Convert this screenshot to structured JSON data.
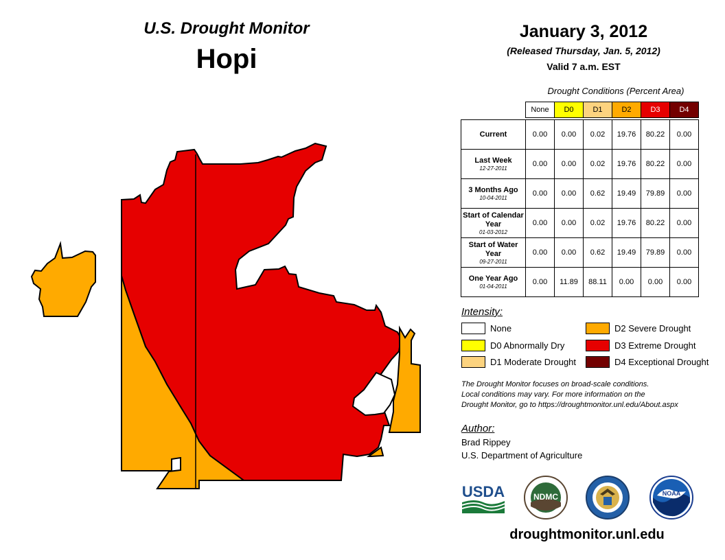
{
  "header": {
    "brand": "U.S. Drought Monitor",
    "region": "Hopi",
    "date": "January 3, 2012",
    "released": "(Released Thursday, Jan. 5, 2012)",
    "valid": "Valid 7 a.m. EST"
  },
  "table": {
    "caption": "Drought Conditions (Percent Area)",
    "columns": [
      "None",
      "D0",
      "D1",
      "D2",
      "D3",
      "D4"
    ],
    "rows": [
      {
        "label": "Current",
        "sub": "",
        "values": [
          "0.00",
          "0.00",
          "0.02",
          "19.76",
          "80.22",
          "0.00"
        ]
      },
      {
        "label": "Last Week",
        "sub": "12-27-2011",
        "values": [
          "0.00",
          "0.00",
          "0.02",
          "19.76",
          "80.22",
          "0.00"
        ]
      },
      {
        "label": "3 Months Ago",
        "sub": "10-04-2011",
        "values": [
          "0.00",
          "0.00",
          "0.62",
          "19.49",
          "79.89",
          "0.00"
        ]
      },
      {
        "label": "Start of Calendar Year",
        "sub": "01-03-2012",
        "values": [
          "0.00",
          "0.00",
          "0.02",
          "19.76",
          "80.22",
          "0.00"
        ]
      },
      {
        "label": "Start of Water Year",
        "sub": "09-27-2011",
        "values": [
          "0.00",
          "0.00",
          "0.62",
          "19.49",
          "79.89",
          "0.00"
        ]
      },
      {
        "label": "One Year Ago",
        "sub": "01-04-2011",
        "values": [
          "0.00",
          "11.89",
          "88.11",
          "0.00",
          "0.00",
          "0.00"
        ]
      }
    ]
  },
  "legend": {
    "title": "Intensity:",
    "items": [
      {
        "label": "None",
        "color": "#ffffff"
      },
      {
        "label": "D0 Abnormally Dry",
        "color": "#ffff00"
      },
      {
        "label": "D1 Moderate Drought",
        "color": "#fcd37f"
      },
      {
        "label": "D2 Severe Drought",
        "color": "#ffaa00"
      },
      {
        "label": "D3 Extreme Drought",
        "color": "#e60000"
      },
      {
        "label": "D4 Exceptional Drought",
        "color": "#730000"
      }
    ]
  },
  "disclaimer": {
    "line1": "The Drought Monitor focuses on broad-scale conditions.",
    "line2": "Local conditions may vary. For more information on the",
    "line3": "Drought Monitor, go to https://droughtmonitor.unl.edu/About.aspx"
  },
  "author": {
    "title": "Author:",
    "name": "Brad Rippey",
    "org": "U.S. Department of Agriculture"
  },
  "logos": {
    "usda": "USDA",
    "ndmc": "NDMC",
    "noaa": "NOAA"
  },
  "website": "droughtmonitor.unl.edu",
  "colors": {
    "d2": "#ffaa00",
    "d3": "#e60000",
    "outline": "#000000"
  }
}
